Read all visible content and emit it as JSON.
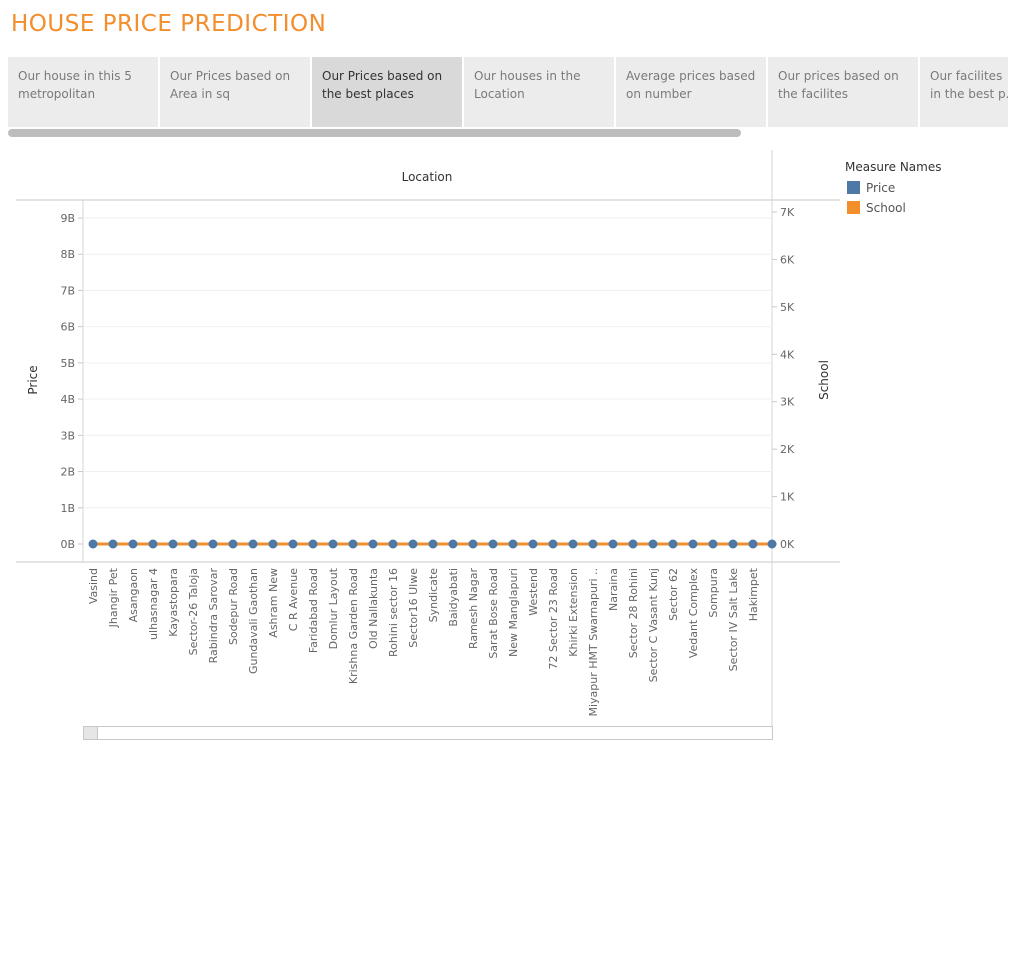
{
  "page_title": "HOUSE PRICE PREDICTION",
  "tabs": [
    {
      "line1": "Our house in this 5",
      "line2": "metropolitan",
      "active": false
    },
    {
      "line1": "Our Prices based on",
      "line2": "Area in sq",
      "active": false
    },
    {
      "line1": "Our Prices based on",
      "line2": "the best places",
      "active": true
    },
    {
      "line1": "Our houses in the",
      "line2": "Location",
      "active": false
    },
    {
      "line1": "Average prices based",
      "line2": "on number",
      "active": false
    },
    {
      "line1": "Our prices based on",
      "line2": "the facilites",
      "active": false
    },
    {
      "line1": "Our facilites",
      "line2": "in the best p...",
      "active": false
    }
  ],
  "legend": {
    "title": "Measure Names",
    "items": [
      {
        "label": "Price",
        "color": "#4e79a7"
      },
      {
        "label": "School",
        "color": "#f28e2b"
      }
    ]
  },
  "chart_data": {
    "type": "line",
    "column_header": "Location",
    "ylabel_left": "Price",
    "ylabel_right": "School",
    "y_left_ticks": [
      "0B",
      "1B",
      "2B",
      "3B",
      "4B",
      "5B",
      "6B",
      "7B",
      "8B",
      "9B"
    ],
    "y_left_range": [
      0,
      9000000000
    ],
    "y_right_ticks": [
      "0K",
      "1K",
      "2K",
      "3K",
      "4K",
      "5K",
      "6K",
      "7K"
    ],
    "y_right_range": [
      0,
      7000
    ],
    "categories": [
      "Vasind",
      "Jhangir Pet",
      "Asangaon",
      "ulhasnagar 4",
      "Kayastopara",
      "Sector-26 Taloja",
      "Rabindra Sarovar",
      "Sodepur Road",
      "Gundavali Gaothan",
      "Ashram New",
      "C R Avenue",
      "Faridabad Road",
      "Domlur Layout",
      "Krishna Garden Road",
      "Old Nallakunta",
      "Rohini sector 16",
      "Sector16 Ulwe",
      "Syndicate",
      "Baidyabati",
      "Ramesh Nagar",
      "Sarat Bose Road",
      "New Manglapuri",
      "Westend",
      "72 Sector 23 Road",
      "Khirki Extension",
      "Miyapur HMT Swarnapuri ..",
      "Naraina",
      "Sector 28 Rohini",
      "Sector C Vasant Kunj",
      "Sector 62",
      "Vedant Complex",
      "Sompura",
      "Sector IV Salt Lake",
      "Hakimpet"
    ],
    "series": [
      {
        "name": "Price",
        "axis": "left",
        "mark": "circle",
        "values": [
          0,
          0,
          0,
          0,
          0,
          0,
          0,
          0,
          0,
          0,
          0,
          0,
          0,
          0,
          0,
          0,
          0,
          0,
          0,
          0,
          0,
          0,
          0,
          0,
          0,
          0,
          0,
          0,
          0,
          0,
          0,
          0,
          0,
          0
        ]
      },
      {
        "name": "School",
        "axis": "right",
        "mark": "line",
        "values": [
          0,
          0,
          0,
          0,
          0,
          0,
          0,
          0,
          0,
          0,
          0,
          0,
          0,
          0,
          0,
          0,
          0,
          0,
          0,
          0,
          0,
          0,
          0,
          0,
          0,
          0,
          0,
          0,
          0,
          0,
          0,
          0,
          0,
          0
        ]
      }
    ]
  }
}
